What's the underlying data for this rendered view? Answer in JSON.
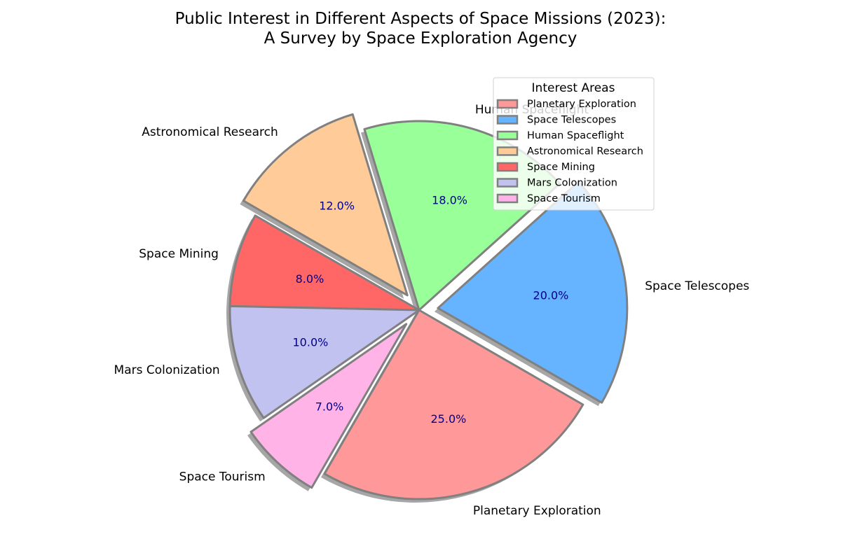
{
  "chart_data": {
    "type": "pie",
    "title": "Public Interest in Different Aspects of Space Missions (2023):",
    "subtitle": "A Survey by Space Exploration Agency",
    "legend": {
      "title": "Interest Areas",
      "placement": "upper-right"
    },
    "start_angle_deg": 240,
    "direction": "counterclockwise",
    "shadow": true,
    "edge_color": "#808080",
    "pct_label_color": "#00008B",
    "slices": [
      {
        "label": "Planetary Exploration",
        "value": 25,
        "pct_label": "25.0%",
        "color": "#FF9999",
        "exploded": false
      },
      {
        "label": "Space Telescopes",
        "value": 20,
        "pct_label": "20.0%",
        "color": "#66B3FF",
        "exploded": true
      },
      {
        "label": "Human Spaceflight",
        "value": 18,
        "pct_label": "18.0%",
        "color": "#99FF99",
        "exploded": false
      },
      {
        "label": "Astronomical Research",
        "value": 12,
        "pct_label": "12.0%",
        "color": "#FFCC99",
        "exploded": true
      },
      {
        "label": "Space Mining",
        "value": 8,
        "pct_label": "8.0%",
        "color": "#FF6666",
        "exploded": false
      },
      {
        "label": "Mars Colonization",
        "value": 10,
        "pct_label": "10.0%",
        "color": "#C2C2F0",
        "exploded": false
      },
      {
        "label": "Space Tourism",
        "value": 7,
        "pct_label": "7.0%",
        "color": "#FFB3E6",
        "exploded": true
      }
    ]
  }
}
